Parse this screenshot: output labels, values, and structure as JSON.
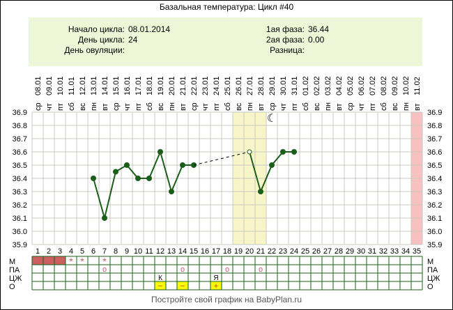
{
  "title": "Базальная температура: Цикл #40",
  "header": {
    "cycle_start_label": "Начало цикла:",
    "cycle_start": "08.01.2014",
    "cycle_day_label": "День цикла:",
    "cycle_day": "24",
    "ovulation_day_label": "День овуляции:",
    "ovulation_day": "",
    "phase1_label": "1ая фаза:",
    "phase1": "36.44",
    "phase2_label": "2ая фаза:",
    "phase2": "0.00",
    "diff_label": "Разница:",
    "diff": ""
  },
  "dates": [
    "08.01",
    "09.01",
    "10.01",
    "11.01",
    "12.01",
    "13.01",
    "14.01",
    "15.01",
    "16.01",
    "17.01",
    "18.01",
    "19.01",
    "20.01",
    "21.01",
    "22.01",
    "23.01",
    "24.01",
    "25.01",
    "26.01",
    "27.01",
    "28.01",
    "29.01",
    "30.01",
    "31.01",
    "01.02",
    "02.02",
    "03.02",
    "04.02",
    "05.02",
    "06.02",
    "07.02",
    "08.02",
    "09.02",
    "10.02",
    "11.02"
  ],
  "weekdays": [
    "ср",
    "чт",
    "пт",
    "сб",
    "вс",
    "пн",
    "вт",
    "ср",
    "чт",
    "пт",
    "сб",
    "вс",
    "пн",
    "вт",
    "ср",
    "чт",
    "пт",
    "сб",
    "вс",
    "пн",
    "вт",
    "ср",
    "чт",
    "пт",
    "сб",
    "вс",
    "пн",
    "вт",
    "ср",
    "чт",
    "пт",
    "сб",
    "вс",
    "пн",
    "вт"
  ],
  "chart_data": {
    "type": "line",
    "x": [
      1,
      2,
      3,
      4,
      5,
      6,
      7,
      8,
      9,
      10,
      11,
      12,
      13,
      14,
      15,
      16,
      17,
      18,
      19,
      20,
      21,
      22,
      23,
      24,
      25,
      26,
      27,
      28,
      29,
      30,
      31,
      32,
      33,
      34,
      35
    ],
    "ylim": [
      35.9,
      36.9
    ],
    "yticks": [
      "36.9",
      "36.8",
      "36.7",
      "36.6",
      "36.5",
      "36.4",
      "36.3",
      "36.2",
      "36.1",
      "36.0",
      "35.9"
    ],
    "grid": true,
    "series": [
      {
        "points": [
          [
            6,
            36.4
          ],
          [
            7,
            36.1
          ],
          [
            8,
            36.45
          ],
          [
            9,
            36.5
          ],
          [
            10,
            36.4
          ],
          [
            11,
            36.4
          ],
          [
            12,
            36.6
          ],
          [
            13,
            36.3
          ],
          [
            14,
            36.5
          ],
          [
            15,
            36.5
          ]
        ],
        "style": "solid"
      },
      {
        "points": [
          [
            15,
            36.5
          ],
          [
            20,
            36.6
          ]
        ],
        "style": "dashed"
      },
      {
        "points": [
          [
            20,
            36.6
          ],
          [
            21,
            36.3
          ],
          [
            22,
            36.5
          ],
          [
            23,
            36.6
          ],
          [
            24,
            36.6
          ]
        ],
        "style": "solid",
        "open_points": [
          20
        ]
      }
    ],
    "highlight_days": [
      19,
      20,
      21
    ],
    "end_day": 35,
    "moon_day": 22,
    "colors": {
      "line": "#1a5e1a",
      "highlight": "#f8f6c8",
      "end": "#f8c0c0",
      "grid": "#c8c8c0",
      "mens": "#cc6060",
      "o_cell": "#ffff00"
    }
  },
  "rows": {
    "labels": [
      "М",
      "ПА",
      "ЦЖ",
      "О"
    ],
    "mens_filled": [
      1,
      2,
      3
    ],
    "mens_stars": [
      4,
      5,
      7
    ],
    "pa_marks": [
      7,
      14,
      18,
      21
    ],
    "czh": [
      {
        "day": 12,
        "text": "К"
      },
      {
        "day": 17,
        "text": "Я"
      }
    ],
    "o": [
      {
        "day": 12,
        "text": "−"
      },
      {
        "day": 14,
        "text": "−"
      },
      {
        "day": 17,
        "text": "+"
      }
    ],
    "star": "*",
    "circle": "o"
  },
  "footer": "Постройте свой график на BabyPlan.ru"
}
